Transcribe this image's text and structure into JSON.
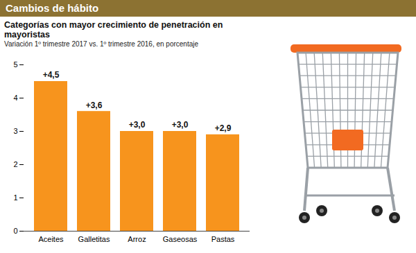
{
  "chart_data": {
    "type": "bar",
    "header": "Cambios de hábito",
    "title": "Categorías con mayor crecimiento de penetración en mayoristas",
    "subtitle": "Variación 1º trimestre 2017 vs. 1º trimestre 2016, en porcentaje",
    "categories": [
      "Aceites",
      "Galletitas",
      "Arroz",
      "Gaseosas",
      "Pastas"
    ],
    "values": [
      4.5,
      3.6,
      3.0,
      3.0,
      2.9
    ],
    "value_labels": [
      "+4,5",
      "+3,6",
      "+3,0",
      "+3,0",
      "+2,9"
    ],
    "color": "#f7941d",
    "ylim": [
      0,
      5
    ],
    "yticks": [
      0,
      1,
      2,
      3,
      4,
      5
    ],
    "grid": false,
    "data_labels": true
  }
}
